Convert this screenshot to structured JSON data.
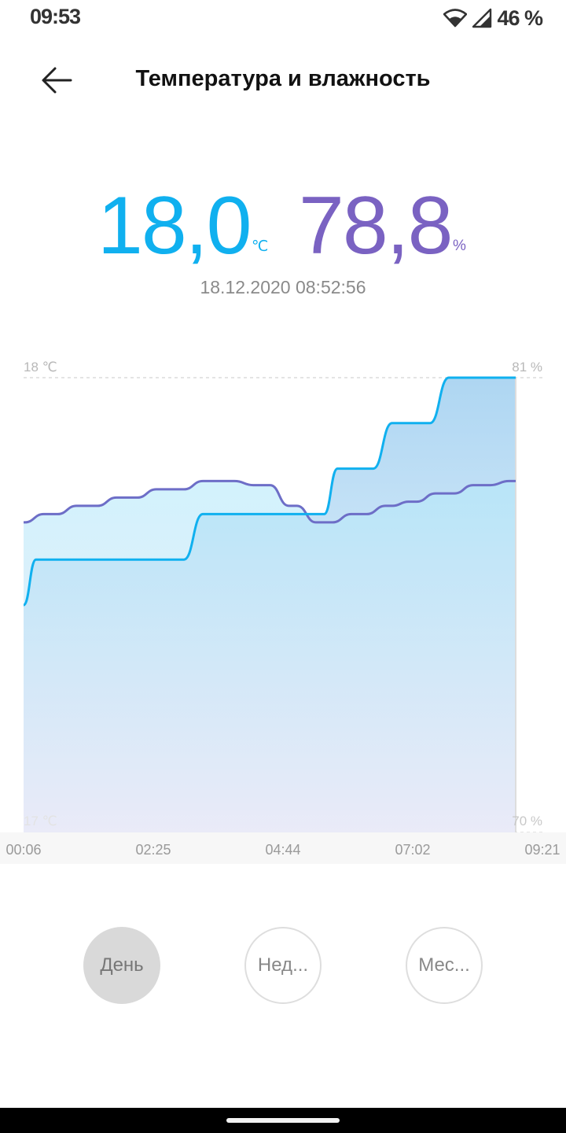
{
  "status": {
    "time": "09:53",
    "battery": "46 %"
  },
  "header": {
    "title": "Температура и влажность"
  },
  "reading": {
    "temperature": "18,0",
    "temperature_unit": "℃",
    "humidity": "78,8",
    "humidity_unit": "%",
    "timestamp": "18.12.2020 08:52:56"
  },
  "colors": {
    "temperature": "#10b0ef",
    "humidity": "#7a62c2",
    "active_button": "#d9d9d9"
  },
  "chart_data": {
    "type": "area",
    "x_labels": [
      "00:06",
      "02:25",
      "04:44",
      "07:02",
      "09:21"
    ],
    "y_left": {
      "top": "18 ℃",
      "bottom": "17 ℃",
      "range": [
        17,
        18
      ]
    },
    "y_right": {
      "top": "81 %",
      "bottom": "70 %",
      "range": [
        70,
        81
      ]
    },
    "series": [
      {
        "key": "temperature",
        "x": [
          "00:06",
          "00:20",
          "01:30",
          "02:25",
          "03:00",
          "03:35",
          "04:44",
          "05:05",
          "05:45",
          "06:00",
          "06:25",
          "06:40",
          "07:02",
          "07:40",
          "08:10",
          "09:21"
        ],
        "values": [
          17.5,
          17.6,
          17.6,
          17.6,
          17.6,
          17.7,
          17.7,
          17.7,
          17.7,
          17.8,
          17.8,
          17.8,
          17.9,
          17.9,
          18.0,
          18.0
        ]
      },
      {
        "key": "humidity",
        "x": [
          "00:06",
          "00:30",
          "01:20",
          "02:00",
          "02:50",
          "03:45",
          "04:44",
          "05:05",
          "05:45",
          "06:25",
          "07:02",
          "07:20",
          "08:00",
          "08:45",
          "09:21"
        ],
        "values": [
          77.5,
          77.7,
          77.9,
          78.1,
          78.3,
          78.5,
          78.4,
          77.9,
          77.5,
          77.7,
          77.9,
          78.0,
          78.2,
          78.4,
          78.5
        ]
      }
    ],
    "grid": false
  },
  "range_buttons": [
    {
      "label": "День",
      "active": true
    },
    {
      "label": "Нед...",
      "active": false
    },
    {
      "label": "Мес...",
      "active": false
    }
  ]
}
